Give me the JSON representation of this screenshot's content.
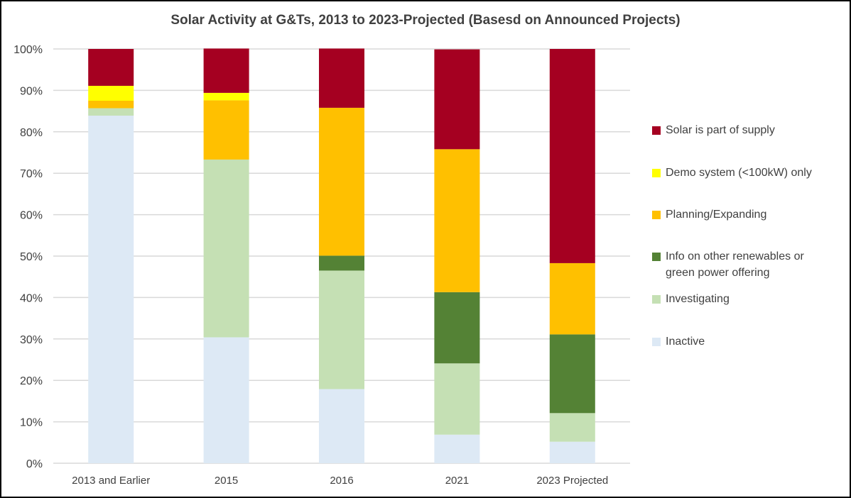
{
  "chart_data": {
    "type": "bar",
    "stacked": true,
    "percent": true,
    "title": "Solar Activity at G&Ts, 2013 to 2023-Projected (Basesd on Announced Projects)",
    "xlabel": "",
    "ylabel": "",
    "ylim": [
      0,
      100
    ],
    "y_ticks": [
      "0%",
      "10%",
      "20%",
      "30%",
      "40%",
      "50%",
      "60%",
      "70%",
      "80%",
      "90%",
      "100%"
    ],
    "grid": true,
    "legend_position": "right",
    "categories": [
      "2013 and Earlier",
      "2015",
      "2016",
      "2021",
      "2023 Projected"
    ],
    "series": [
      {
        "name": "Inactive",
        "color": "#DDE9F5",
        "values": [
          83.9,
          30.4,
          17.9,
          6.9,
          5.2
        ]
      },
      {
        "name": "Investigating",
        "color": "#C5E0B4",
        "values": [
          1.8,
          42.9,
          28.6,
          17.2,
          6.9
        ]
      },
      {
        "name": "Info on other renewables or green power offering",
        "color": "#548235",
        "values": [
          0,
          0,
          3.6,
          17.2,
          19.0
        ]
      },
      {
        "name": "Planning/Expanding",
        "color": "#FFC000",
        "values": [
          1.8,
          14.3,
          35.7,
          34.5,
          17.2
        ]
      },
      {
        "name": "Demo system (<100kW) only",
        "color": "#FFFF00",
        "values": [
          3.6,
          1.8,
          0,
          0,
          0
        ]
      },
      {
        "name": "Solar is part of supply",
        "color": "#A50021",
        "values": [
          8.9,
          10.7,
          14.3,
          24.1,
          51.7
        ]
      }
    ]
  }
}
